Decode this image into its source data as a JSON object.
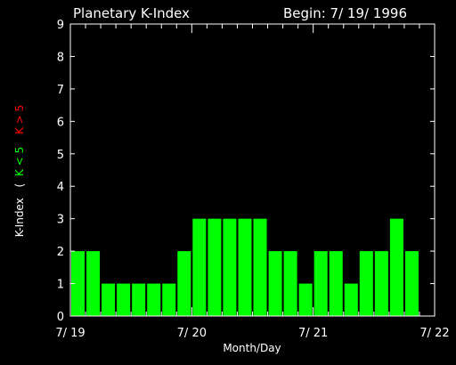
{
  "chart_data": {
    "type": "bar",
    "title": "Planetary K-Index",
    "begin": "Begin: 7/ 19/ 1996",
    "xlabel": "Month/Day",
    "ylabel": {
      "main": "K-Index",
      "paren_open": "(",
      "green_part": "K < 5",
      "red_part": "K > 5",
      "paren_close": ")"
    },
    "ylim": [
      0,
      9
    ],
    "yticks": [
      "0",
      "1",
      "2",
      "3",
      "4",
      "5",
      "6",
      "7",
      "8",
      "9"
    ],
    "xticks": [
      {
        "label": "7/ 19",
        "day": 0
      },
      {
        "label": "7/ 20",
        "day": 1
      },
      {
        "label": "7/ 21",
        "day": 2
      },
      {
        "label": "7/ 22",
        "day": 3
      }
    ],
    "bars_per_day": 8,
    "values": [
      2,
      2,
      1,
      1,
      1,
      1,
      1,
      2,
      3,
      3,
      3,
      3,
      3,
      2,
      2,
      1,
      2,
      2,
      1,
      2,
      2,
      3,
      2
    ],
    "grid": false,
    "colors": {
      "background": "#000000",
      "axes": "#ffffff",
      "bar_low": "#00ff00",
      "bar_high": "#ff0000",
      "label_green": "#00ff00",
      "label_red": "#ff0000"
    }
  }
}
